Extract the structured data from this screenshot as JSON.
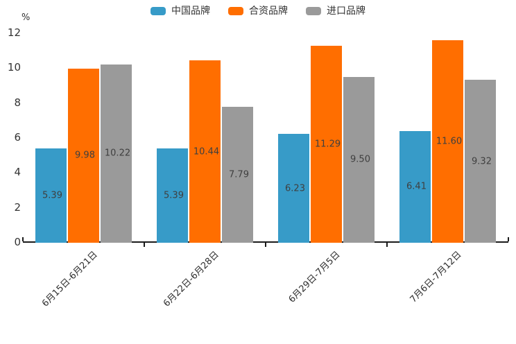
{
  "chart_data": {
    "type": "bar",
    "title": "",
    "unit_label": "%",
    "categories": [
      "6月15日-6月21日",
      "6月22日-6月28日",
      "6月29日-7月5日",
      "7月6日-7月12日"
    ],
    "series": [
      {
        "id": "china-brands",
        "name": "中国品牌",
        "color": "#379BC8",
        "values": [
          5.39,
          5.39,
          6.23,
          6.41
        ]
      },
      {
        "id": "joint-venture-brands",
        "name": "合资品牌",
        "color": "#FF6E00",
        "values": [
          9.98,
          10.44,
          11.29,
          11.6
        ]
      },
      {
        "id": "imported-brands",
        "name": "进口品牌",
        "color": "#9A9A9A",
        "values": [
          10.22,
          7.79,
          9.5,
          9.32
        ]
      }
    ],
    "y_axis": {
      "min": 0,
      "max": 12,
      "tick_interval": 2,
      "ticks": [
        0,
        2,
        4,
        6,
        8,
        10,
        12
      ]
    },
    "legend_position": "top-center",
    "grid": false,
    "value_labels": "inside-middle",
    "x_label_rotation_deg": 45
  }
}
